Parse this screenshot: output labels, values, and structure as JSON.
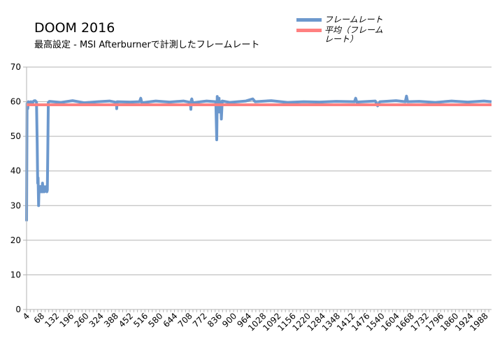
{
  "chart_data": {
    "type": "line",
    "title": "DOOM 2016",
    "subtitle": "最高設定 - MSI Afterburnerで計測したフレームレート",
    "xlabel": "",
    "ylabel": "",
    "ylim": [
      0,
      70
    ],
    "yticks": [
      0,
      10,
      20,
      30,
      40,
      50,
      60,
      70
    ],
    "xlim": [
      1,
      2013
    ],
    "xticks": [
      4,
      68,
      132,
      196,
      260,
      324,
      388,
      452,
      516,
      580,
      644,
      708,
      772,
      836,
      900,
      964,
      1028,
      1092,
      1156,
      1220,
      1284,
      1348,
      1412,
      1476,
      1540,
      1604,
      1668,
      1732,
      1796,
      1860,
      1924,
      1988
    ],
    "grid": true,
    "legend_position": "top-right",
    "series": [
      {
        "name": "フレームレート",
        "color": "#6c98cd",
        "points": [
          [
            1,
            25.5
          ],
          [
            3,
            59.5
          ],
          [
            6,
            58
          ],
          [
            9,
            60
          ],
          [
            14,
            59.8
          ],
          [
            20,
            60
          ],
          [
            26,
            59.6
          ],
          [
            32,
            60.2
          ],
          [
            38,
            60.3
          ],
          [
            44,
            59.9
          ],
          [
            47,
            48
          ],
          [
            49,
            36.5
          ],
          [
            51,
            38
          ],
          [
            53,
            30
          ],
          [
            55,
            35
          ],
          [
            57,
            35
          ],
          [
            59,
            34
          ],
          [
            61,
            35.5
          ],
          [
            63,
            34
          ],
          [
            66,
            35.5
          ],
          [
            68,
            34
          ],
          [
            70,
            36.5
          ],
          [
            72,
            34
          ],
          [
            75,
            35.5
          ],
          [
            78,
            34
          ],
          [
            80,
            35
          ],
          [
            83,
            34.5
          ],
          [
            86,
            35.5
          ],
          [
            89,
            34
          ],
          [
            91,
            34.5
          ],
          [
            93,
            46.5
          ],
          [
            95,
            59.8
          ],
          [
            100,
            60.1
          ],
          [
            150,
            59.8
          ],
          [
            200,
            60.3
          ],
          [
            250,
            59.7
          ],
          [
            310,
            60
          ],
          [
            360,
            60.2
          ],
          [
            390,
            59.8
          ],
          [
            391,
            58
          ],
          [
            393,
            60
          ],
          [
            450,
            59.9
          ],
          [
            490,
            60
          ],
          [
            495,
            61
          ],
          [
            500,
            59.7
          ],
          [
            560,
            60.2
          ],
          [
            620,
            59.9
          ],
          [
            680,
            60.2
          ],
          [
            710,
            59.8
          ],
          [
            712,
            57.8
          ],
          [
            714,
            60.5
          ],
          [
            716,
            60.8
          ],
          [
            720,
            59.7
          ],
          [
            780,
            60.2
          ],
          [
            820,
            60
          ],
          [
            824,
            49
          ],
          [
            826,
            61.5
          ],
          [
            828,
            57
          ],
          [
            830,
            59
          ],
          [
            832,
            57.5
          ],
          [
            834,
            61
          ],
          [
            836,
            57
          ],
          [
            838,
            59
          ],
          [
            840,
            57.5
          ],
          [
            842,
            60
          ],
          [
            844,
            55
          ],
          [
            846,
            58
          ],
          [
            848,
            60.2
          ],
          [
            880,
            59.8
          ],
          [
            950,
            60.2
          ],
          [
            980,
            60.8
          ],
          [
            990,
            60
          ],
          [
            1060,
            60.3
          ],
          [
            1130,
            59.8
          ],
          [
            1200,
            60
          ],
          [
            1270,
            59.9
          ],
          [
            1340,
            60.1
          ],
          [
            1420,
            60
          ],
          [
            1425,
            61
          ],
          [
            1430,
            59.9
          ],
          [
            1510,
            60.2
          ],
          [
            1520,
            58.8
          ],
          [
            1530,
            60
          ],
          [
            1600,
            60.3
          ],
          [
            1640,
            60
          ],
          [
            1645,
            61.6
          ],
          [
            1650,
            60
          ],
          [
            1700,
            60.1
          ],
          [
            1770,
            59.8
          ],
          [
            1840,
            60.2
          ],
          [
            1910,
            59.9
          ],
          [
            1980,
            60.2
          ],
          [
            2013,
            60
          ]
        ]
      },
      {
        "name": "平均（フレームレート）",
        "color": "#ff8080",
        "points": [
          [
            1,
            59.1
          ],
          [
            2013,
            59.1
          ]
        ]
      }
    ]
  }
}
